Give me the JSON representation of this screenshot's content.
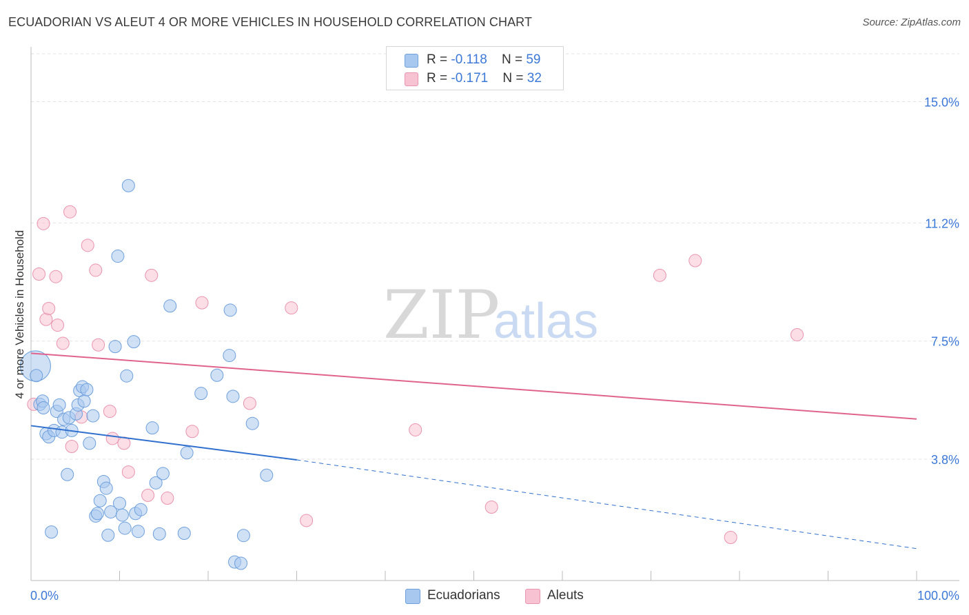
{
  "title": "ECUADORIAN VS ALEUT 4 OR MORE VEHICLES IN HOUSEHOLD CORRELATION CHART",
  "source": "Source: ZipAtlas.com",
  "watermark": {
    "zip": "ZIP",
    "atlas": "atlas"
  },
  "legend": {
    "rows": [
      {
        "r_label": "R = ",
        "r_value": "-0.118",
        "n_label": "N = ",
        "n_value": "59"
      },
      {
        "r_label": "R = ",
        "r_value": "-0.171",
        "n_label": "N = ",
        "n_value": "32"
      }
    ]
  },
  "bottom_legend": {
    "items": [
      "Ecuadorians",
      "Aleuts"
    ]
  },
  "chart_data": {
    "type": "scatter",
    "title": "ECUADORIAN VS ALEUT 4 OR MORE VEHICLES IN HOUSEHOLD CORRELATION CHART",
    "xlabel": "",
    "ylabel": "4 or more Vehicles in Household",
    "xlim": [
      0,
      100
    ],
    "ylim": [
      0,
      16.5
    ],
    "x_tick_labels": [
      "0.0%",
      "100.0%"
    ],
    "y_ticks": [
      3.8,
      7.5,
      11.2,
      15.0
    ],
    "y_tick_labels": [
      "3.8%",
      "7.5%",
      "11.2%",
      "15.0%"
    ],
    "colors": {
      "ecuadorians_fill": "#a9c8ef",
      "ecuadorians_stroke": "#6d9fdc",
      "ecuadorians_line": "#2f6fce",
      "aleuts_fill": "#f7c3d2",
      "aleuts_stroke": "#ea93ae",
      "aleuts_line": "#e0638c",
      "tick_text": "#3b78d8"
    },
    "series": [
      {
        "name": "Ecuadorians",
        "r": -0.118,
        "n": 59,
        "trend": {
          "x0": 0,
          "y0": 4.85,
          "x1": 30,
          "y1": 3.78,
          "dash_x1": 100,
          "dash_y1": 1.0
        },
        "points": [
          [
            0.5,
            6.72,
            22
          ],
          [
            0.6,
            6.42,
            9
          ],
          [
            1.0,
            5.52,
            9
          ],
          [
            1.3,
            5.62,
            9
          ],
          [
            1.4,
            5.41,
            9
          ],
          [
            1.7,
            4.6,
            9
          ],
          [
            2.0,
            4.5,
            9
          ],
          [
            2.3,
            1.52,
            9
          ],
          [
            2.6,
            4.7,
            9
          ],
          [
            2.9,
            5.3,
            9
          ],
          [
            3.2,
            5.5,
            9
          ],
          [
            3.5,
            4.65,
            9
          ],
          [
            3.7,
            5.05,
            9
          ],
          [
            4.1,
            3.32,
            9
          ],
          [
            4.3,
            5.1,
            9
          ],
          [
            4.6,
            4.7,
            9
          ],
          [
            5.1,
            5.22,
            9
          ],
          [
            5.3,
            5.5,
            9
          ],
          [
            5.5,
            5.95,
            9
          ],
          [
            5.8,
            6.07,
            9
          ],
          [
            6.0,
            5.62,
            9
          ],
          [
            6.3,
            5.98,
            9
          ],
          [
            6.6,
            4.3,
            9
          ],
          [
            7.0,
            5.16,
            9
          ],
          [
            7.3,
            2.02,
            9
          ],
          [
            7.5,
            2.1,
            9
          ],
          [
            7.8,
            2.5,
            9
          ],
          [
            8.2,
            3.1,
            9
          ],
          [
            8.5,
            2.89,
            9
          ],
          [
            8.7,
            1.42,
            9
          ],
          [
            9.0,
            2.15,
            9
          ],
          [
            9.5,
            7.33,
            9
          ],
          [
            9.8,
            10.16,
            9
          ],
          [
            10.0,
            2.42,
            9
          ],
          [
            10.3,
            2.05,
            9
          ],
          [
            10.6,
            1.64,
            9
          ],
          [
            10.8,
            6.41,
            9
          ],
          [
            11.0,
            12.37,
            9
          ],
          [
            11.6,
            7.48,
            9
          ],
          [
            11.8,
            2.1,
            9
          ],
          [
            12.1,
            1.54,
            9
          ],
          [
            12.4,
            2.22,
            9
          ],
          [
            13.7,
            4.78,
            9
          ],
          [
            14.1,
            3.06,
            9
          ],
          [
            14.5,
            1.46,
            9
          ],
          [
            14.9,
            3.35,
            9
          ],
          [
            15.7,
            8.6,
            9
          ],
          [
            17.3,
            1.48,
            9
          ],
          [
            17.6,
            4.0,
            9
          ],
          [
            19.2,
            5.86,
            9
          ],
          [
            21.0,
            6.43,
            9
          ],
          [
            22.4,
            7.05,
            9
          ],
          [
            22.5,
            8.47,
            9
          ],
          [
            22.8,
            5.77,
            9
          ],
          [
            23.0,
            0.58,
            9
          ],
          [
            23.7,
            0.54,
            9
          ],
          [
            24.0,
            1.41,
            9
          ],
          [
            25.0,
            4.92,
            9
          ],
          [
            26.6,
            3.3,
            9
          ]
        ]
      },
      {
        "name": "Aleuts",
        "r": -0.171,
        "n": 32,
        "trend": {
          "x0": 0,
          "y0": 7.12,
          "x1": 100,
          "y1": 5.06
        },
        "points": [
          [
            0.3,
            5.52,
            9
          ],
          [
            0.9,
            9.6,
            9
          ],
          [
            1.4,
            11.18,
            9
          ],
          [
            1.7,
            8.18,
            9
          ],
          [
            2.0,
            8.52,
            9
          ],
          [
            2.8,
            9.52,
            9
          ],
          [
            3.0,
            8.0,
            9
          ],
          [
            3.6,
            7.43,
            9
          ],
          [
            4.4,
            11.55,
            9
          ],
          [
            4.6,
            4.2,
            9
          ],
          [
            5.7,
            5.12,
            9
          ],
          [
            6.4,
            10.5,
            9
          ],
          [
            7.3,
            9.72,
            9
          ],
          [
            7.6,
            7.38,
            9
          ],
          [
            8.9,
            5.3,
            9
          ],
          [
            9.2,
            4.45,
            9
          ],
          [
            10.5,
            4.3,
            9
          ],
          [
            11.0,
            3.4,
            9
          ],
          [
            13.2,
            2.67,
            9
          ],
          [
            13.6,
            9.56,
            9
          ],
          [
            15.4,
            2.58,
            9
          ],
          [
            18.2,
            4.67,
            9
          ],
          [
            19.3,
            8.7,
            9
          ],
          [
            24.7,
            5.55,
            9
          ],
          [
            29.4,
            8.54,
            9
          ],
          [
            31.1,
            1.88,
            9
          ],
          [
            43.4,
            4.72,
            9
          ],
          [
            52.0,
            2.3,
            9
          ],
          [
            71.0,
            9.56,
            9
          ],
          [
            75.0,
            10.02,
            9
          ],
          [
            86.5,
            7.7,
            9
          ],
          [
            79.0,
            1.35,
            9
          ]
        ]
      }
    ]
  }
}
